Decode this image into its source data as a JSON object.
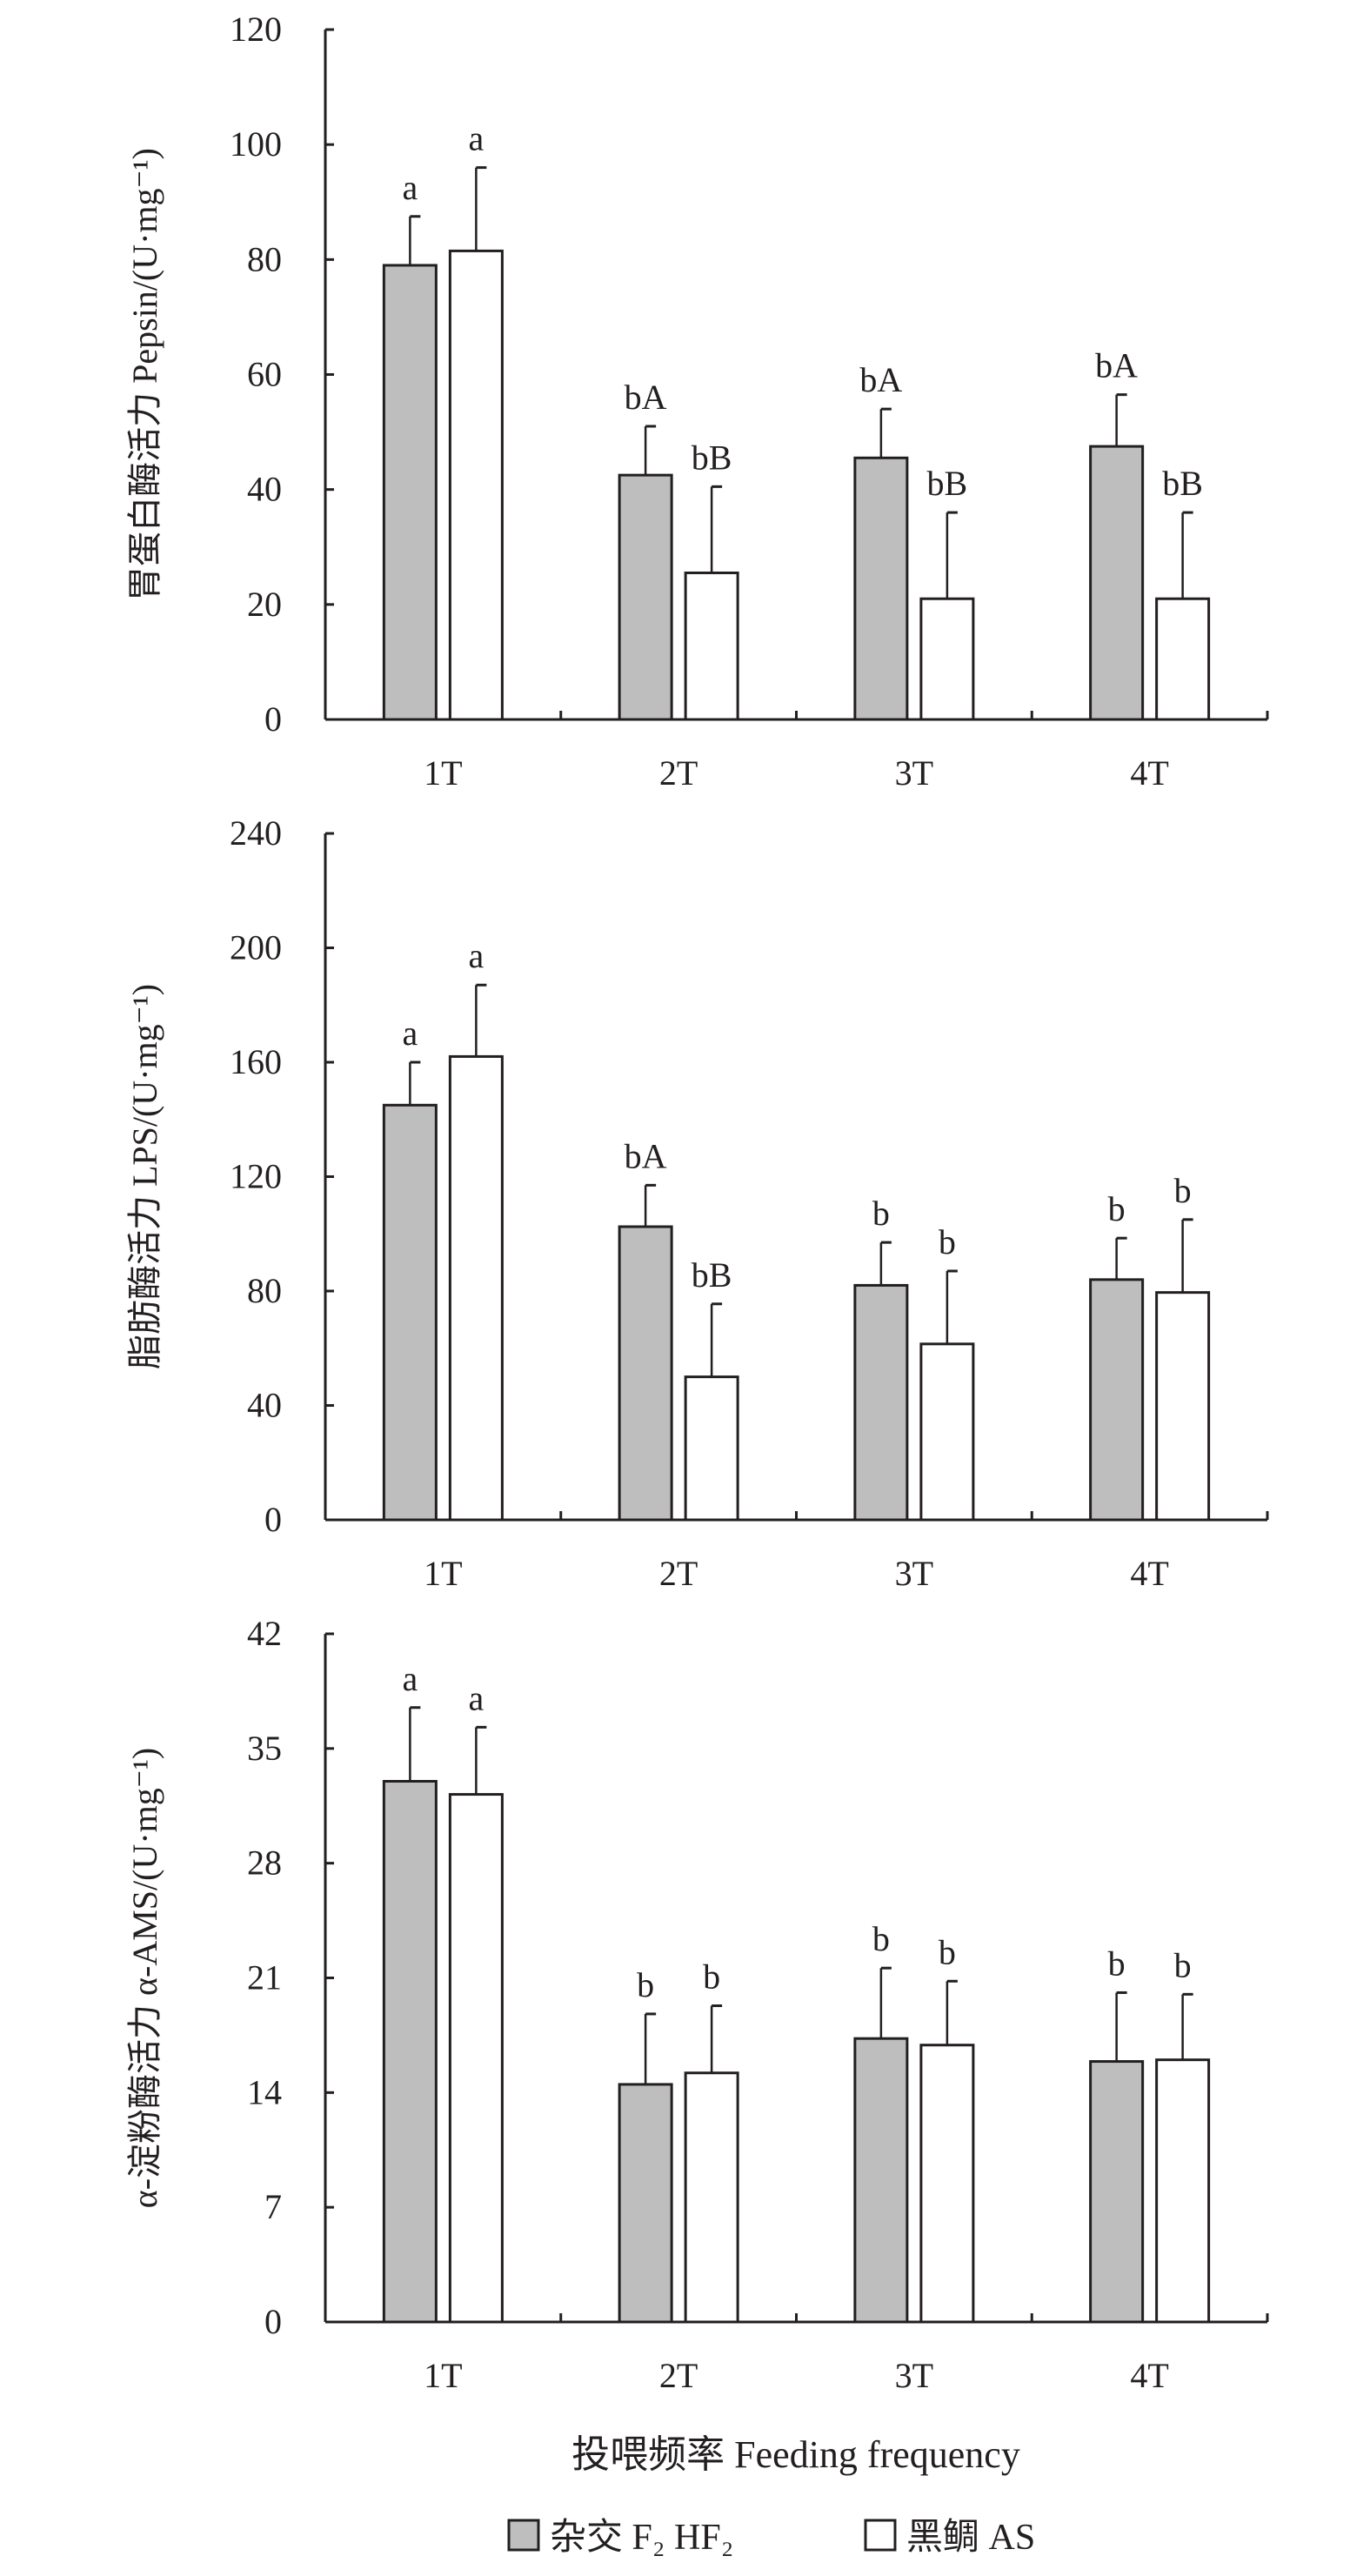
{
  "chart_data": [
    {
      "type": "bar",
      "ylabel": "胃蛋白酶活力 Pepsin/(U·mg⁻¹)",
      "ylim": [
        0,
        120
      ],
      "yticks": [
        "0",
        "20",
        "40",
        "60",
        "80",
        "100",
        "120"
      ],
      "categories": [
        "1T",
        "2T",
        "3T",
        "4T"
      ],
      "series": [
        {
          "name": "杂交 F₂ HF₂",
          "values": [
            79,
            42.5,
            45.5,
            47.5
          ],
          "errors": [
            8.5,
            8.5,
            8.5,
            9
          ],
          "labels": [
            "a",
            "bA",
            "bA",
            "bA"
          ]
        },
        {
          "name": "黑鲷 AS",
          "values": [
            81.5,
            25.5,
            21,
            21
          ],
          "errors": [
            14.5,
            15,
            15,
            15
          ],
          "labels": [
            "a",
            "bB",
            "bB",
            "bB"
          ]
        }
      ]
    },
    {
      "type": "bar",
      "ylabel": "脂肪酶活力 LPS/(U·mg⁻¹)",
      "ylim": [
        0,
        240
      ],
      "yticks": [
        "0",
        "40",
        "80",
        "120",
        "160",
        "200",
        "240"
      ],
      "categories": [
        "1T",
        "2T",
        "3T",
        "4T"
      ],
      "series": [
        {
          "name": "杂交 F₂ HF₂",
          "values": [
            145,
            102.5,
            82,
            84
          ],
          "errors": [
            15,
            14.5,
            15,
            14.5
          ],
          "labels": [
            "a",
            "bA",
            "b",
            "b"
          ]
        },
        {
          "name": "黑鲷 AS",
          "values": [
            162,
            50,
            61.5,
            79.5
          ],
          "errors": [
            25,
            25.5,
            25.5,
            25.5
          ],
          "labels": [
            "a",
            "bB",
            "b",
            "b"
          ]
        }
      ]
    },
    {
      "type": "bar",
      "ylabel": "α-淀粉酶活力 α-AMS/(U·mg⁻¹)",
      "ylim": [
        0,
        42
      ],
      "yticks": [
        "0",
        "7",
        "14",
        "21",
        "28",
        "35",
        "42"
      ],
      "categories": [
        "1T",
        "2T",
        "3T",
        "4T"
      ],
      "series": [
        {
          "name": "杂交 F₂ HF₂",
          "values": [
            33,
            14.5,
            17.3,
            15.9
          ],
          "errors": [
            4.5,
            4.3,
            4.3,
            4.2
          ],
          "labels": [
            "a",
            "b",
            "b",
            "b"
          ]
        },
        {
          "name": "黑鲷 AS",
          "values": [
            32.2,
            15.2,
            16.9,
            16.0
          ],
          "errors": [
            4.1,
            4.1,
            3.9,
            4.0
          ],
          "labels": [
            "a",
            "b",
            "b",
            "b"
          ]
        }
      ]
    }
  ],
  "xlabel": "投喂频率 Feeding frequency",
  "legend": {
    "position": "bottom",
    "items": [
      {
        "label": "杂交 F₂ HF₂",
        "color": "#bebebe"
      },
      {
        "label": "黑鲷 AS",
        "color": "#ffffff"
      }
    ]
  }
}
